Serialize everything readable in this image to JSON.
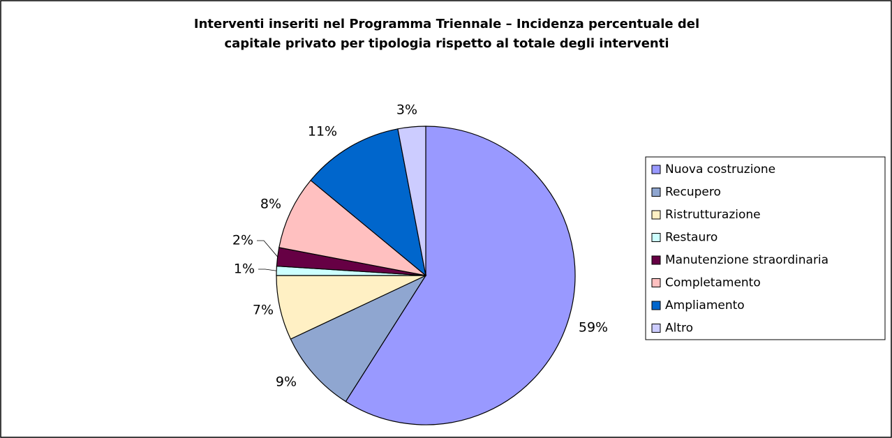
{
  "chart_data": {
    "type": "pie",
    "title": [
      "Interventi inseriti nel Programma Triennale – Incidenza percentuale del",
      "capitale privato per tipologia rispetto al totale degli interventi"
    ],
    "categories": [
      "Nuova costruzione",
      "Recupero",
      "Ristrutturazione",
      "Restauro",
      "Manutenzione straordinaria",
      "Completamento",
      "Ampliamento",
      "Altro"
    ],
    "values": [
      59,
      9,
      7,
      1,
      2,
      8,
      11,
      3
    ],
    "value_labels": [
      "59%",
      "9%",
      "7%",
      "1%",
      "2%",
      "8%",
      "11%",
      "3%"
    ],
    "colors": [
      "#9999ff",
      "#8fa6d0",
      "#fff0c4",
      "#ccffff",
      "#660044",
      "#ffc0c0",
      "#0066cc",
      "#ccccff"
    ],
    "legend": "right"
  }
}
